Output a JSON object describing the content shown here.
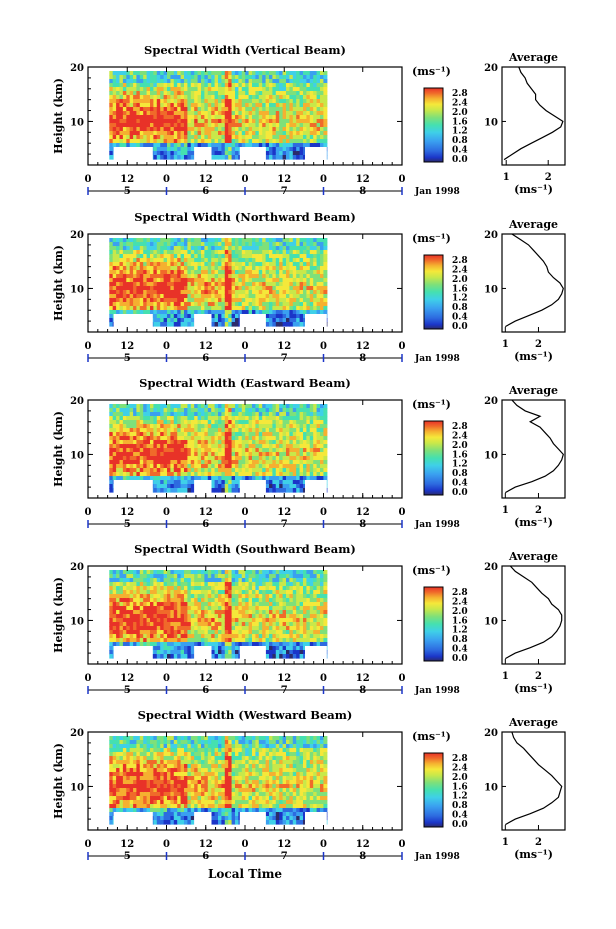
{
  "figure": {
    "xlabel": "Local Time",
    "ticks_hour": [
      "0",
      "12",
      "0",
      "12",
      "0",
      "12",
      "0",
      "12",
      "0"
    ],
    "day_labels": [
      "5",
      "6",
      "7",
      "8"
    ],
    "date_label": "Jan 1998",
    "height_label": "Height (km)",
    "height_ticks": [
      "10",
      "20"
    ],
    "colorbar_unit": "(ms⁻¹)",
    "colorbar_ticks": [
      "0.0",
      "0.4",
      "0.8",
      "1.2",
      "1.6",
      "2.0",
      "2.4",
      "2.8"
    ],
    "colorbar_colors": [
      "#2b2b6b",
      "#1b35c8",
      "#2d6be0",
      "#3aa0f0",
      "#3fd0e8",
      "#45e0b0",
      "#7ee07a",
      "#c8e84a",
      "#f5e83a",
      "#f5b030",
      "#f06a2a",
      "#e83228"
    ],
    "avg_title": "Average",
    "avg_xlabel": "(ms⁻¹)"
  },
  "chart_data": [
    {
      "type": "heatmap",
      "title": "Spectral Width (Vertical Beam)",
      "xlabel": "",
      "ylabel": "Height (km)",
      "xlim_hours": [
        0,
        96
      ],
      "ylim_km": [
        2,
        20
      ],
      "data_extent_hours": [
        6.5,
        73
      ],
      "colorbar": {
        "label": "(ms⁻¹)",
        "range": [
          0.0,
          2.8
        ]
      },
      "average_profile": {
        "title": "Average",
        "xlabel": "(ms⁻¹)",
        "xticks": [
          1,
          2
        ],
        "xlim": [
          0.9,
          2.4
        ],
        "height_km": [
          3,
          4,
          5,
          6,
          7,
          8,
          9,
          10,
          11,
          12,
          13,
          14,
          15,
          16,
          17,
          18,
          19,
          20
        ],
        "width_ms": [
          0.95,
          1.15,
          1.35,
          1.6,
          1.85,
          2.1,
          2.3,
          2.35,
          2.15,
          1.95,
          1.8,
          1.7,
          1.7,
          1.6,
          1.5,
          1.45,
          1.35,
          1.3
        ]
      }
    },
    {
      "type": "heatmap",
      "title": "Spectral Width (Northward Beam)",
      "xlabel": "",
      "ylabel": "Height (km)",
      "xlim_hours": [
        0,
        96
      ],
      "ylim_km": [
        2,
        20
      ],
      "data_extent_hours": [
        6.5,
        73
      ],
      "colorbar": {
        "label": "(ms⁻¹)",
        "range": [
          0.0,
          2.8
        ]
      },
      "average_profile": {
        "title": "Average",
        "xlabel": "(ms⁻¹)",
        "xticks": [
          1,
          2
        ],
        "xlim": [
          0.9,
          2.8
        ],
        "height_km": [
          3,
          4,
          5,
          6,
          7,
          8,
          9,
          10,
          11,
          12,
          13,
          14,
          15,
          16,
          17,
          18,
          19,
          20
        ],
        "width_ms": [
          1.0,
          1.3,
          1.7,
          2.1,
          2.4,
          2.6,
          2.7,
          2.75,
          2.65,
          2.45,
          2.3,
          2.25,
          2.15,
          2.0,
          1.85,
          1.7,
          1.45,
          1.2
        ]
      }
    },
    {
      "type": "heatmap",
      "title": "Spectral Width (Eastward Beam)",
      "xlabel": "",
      "ylabel": "Height (km)",
      "xlim_hours": [
        0,
        96
      ],
      "ylim_km": [
        2,
        20
      ],
      "data_extent_hours": [
        6.5,
        73
      ],
      "colorbar": {
        "label": "(ms⁻¹)",
        "range": [
          0.0,
          2.8
        ]
      },
      "average_profile": {
        "title": "Average",
        "xlabel": "(ms⁻¹)",
        "xticks": [
          1,
          2
        ],
        "xlim": [
          0.9,
          2.8
        ],
        "height_km": [
          3,
          4,
          5,
          6,
          7,
          8,
          9,
          10,
          11,
          12,
          13,
          14,
          15,
          16,
          17,
          18,
          19,
          20
        ],
        "width_ms": [
          1.0,
          1.3,
          1.8,
          2.2,
          2.45,
          2.6,
          2.7,
          2.75,
          2.6,
          2.45,
          2.35,
          2.2,
          2.05,
          1.75,
          2.05,
          1.6,
          1.35,
          1.2
        ]
      }
    },
    {
      "type": "heatmap",
      "title": "Spectral Width (Southward Beam)",
      "xlabel": "",
      "ylabel": "Height (km)",
      "xlim_hours": [
        0,
        96
      ],
      "ylim_km": [
        2,
        20
      ],
      "data_extent_hours": [
        6.5,
        73
      ],
      "colorbar": {
        "label": "(ms⁻¹)",
        "range": [
          0.0,
          2.8
        ]
      },
      "average_profile": {
        "title": "Average",
        "xlabel": "(ms⁻¹)",
        "xticks": [
          1,
          2
        ],
        "xlim": [
          0.9,
          2.8
        ],
        "height_km": [
          3,
          4,
          5,
          6,
          7,
          8,
          9,
          10,
          11,
          12,
          13,
          14,
          15,
          16,
          17,
          18,
          19,
          20
        ],
        "width_ms": [
          1.0,
          1.3,
          1.75,
          2.15,
          2.4,
          2.55,
          2.65,
          2.7,
          2.7,
          2.6,
          2.4,
          2.3,
          2.1,
          1.95,
          1.8,
          1.55,
          1.3,
          1.15
        ]
      }
    },
    {
      "type": "heatmap",
      "title": "Spectral Width (Westward Beam)",
      "xlabel": "Local Time",
      "ylabel": "Height (km)",
      "xlim_hours": [
        0,
        96
      ],
      "ylim_km": [
        2,
        20
      ],
      "data_extent_hours": [
        6.5,
        73
      ],
      "colorbar": {
        "label": "(ms⁻¹)",
        "range": [
          0.0,
          2.8
        ]
      },
      "average_profile": {
        "title": "Average",
        "xlabel": "(ms⁻¹)",
        "xticks": [
          1,
          2
        ],
        "xlim": [
          0.9,
          2.8
        ],
        "height_km": [
          3,
          4,
          5,
          6,
          7,
          8,
          9,
          10,
          11,
          12,
          13,
          14,
          15,
          16,
          17,
          18,
          19,
          20
        ],
        "width_ms": [
          1.0,
          1.3,
          1.75,
          2.15,
          2.4,
          2.6,
          2.65,
          2.7,
          2.55,
          2.4,
          2.2,
          2.0,
          1.85,
          1.7,
          1.55,
          1.35,
          1.25,
          1.2
        ]
      }
    }
  ]
}
